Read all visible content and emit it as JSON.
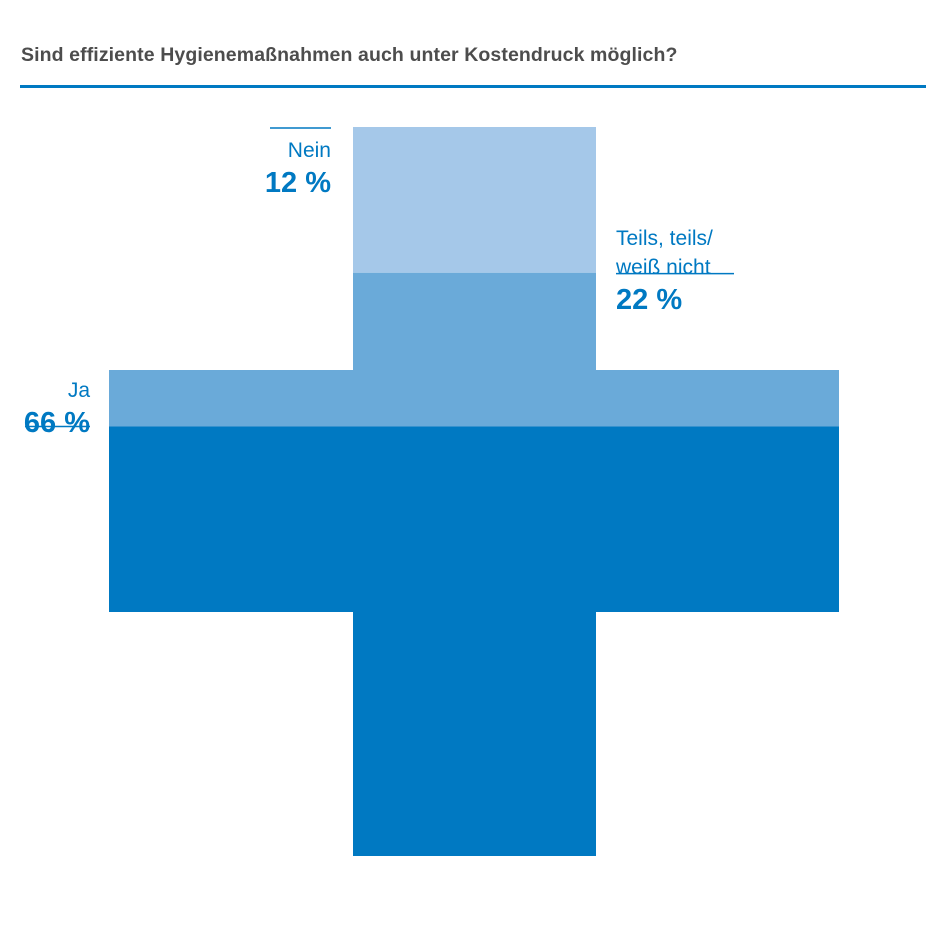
{
  "colors": {
    "title": "#4d4d4d",
    "rule": "#0079c2",
    "ja": "#0079c2",
    "teils": "#6aaad9",
    "nein": "#a5c8e9",
    "label": "#0079c2"
  },
  "header": {
    "title": "Sind effiziente Hygienemaßnahmen auch unter Kostendruck möglich?"
  },
  "chart_data": {
    "type": "stacked-pictogram",
    "shape": "cross",
    "title": "Sind effiziente Hygienemaßnahmen auch unter Kostendruck möglich?",
    "unit": "%",
    "stack_order": [
      "ja",
      "teils",
      "nein"
    ],
    "series": [
      {
        "key": "ja",
        "name": "Ja",
        "value": 66,
        "label_lines": [
          "Ja"
        ],
        "value_label": "66 %"
      },
      {
        "key": "teils",
        "name": "Teils, teils/ weiß nicht",
        "value": 22,
        "label_lines": [
          "Teils, teils/",
          "weiß nicht"
        ],
        "value_label": "22 %"
      },
      {
        "key": "nein",
        "name": "Nein",
        "value": 12,
        "label_lines": [
          "Nein"
        ],
        "value_label": "12 %"
      }
    ]
  }
}
